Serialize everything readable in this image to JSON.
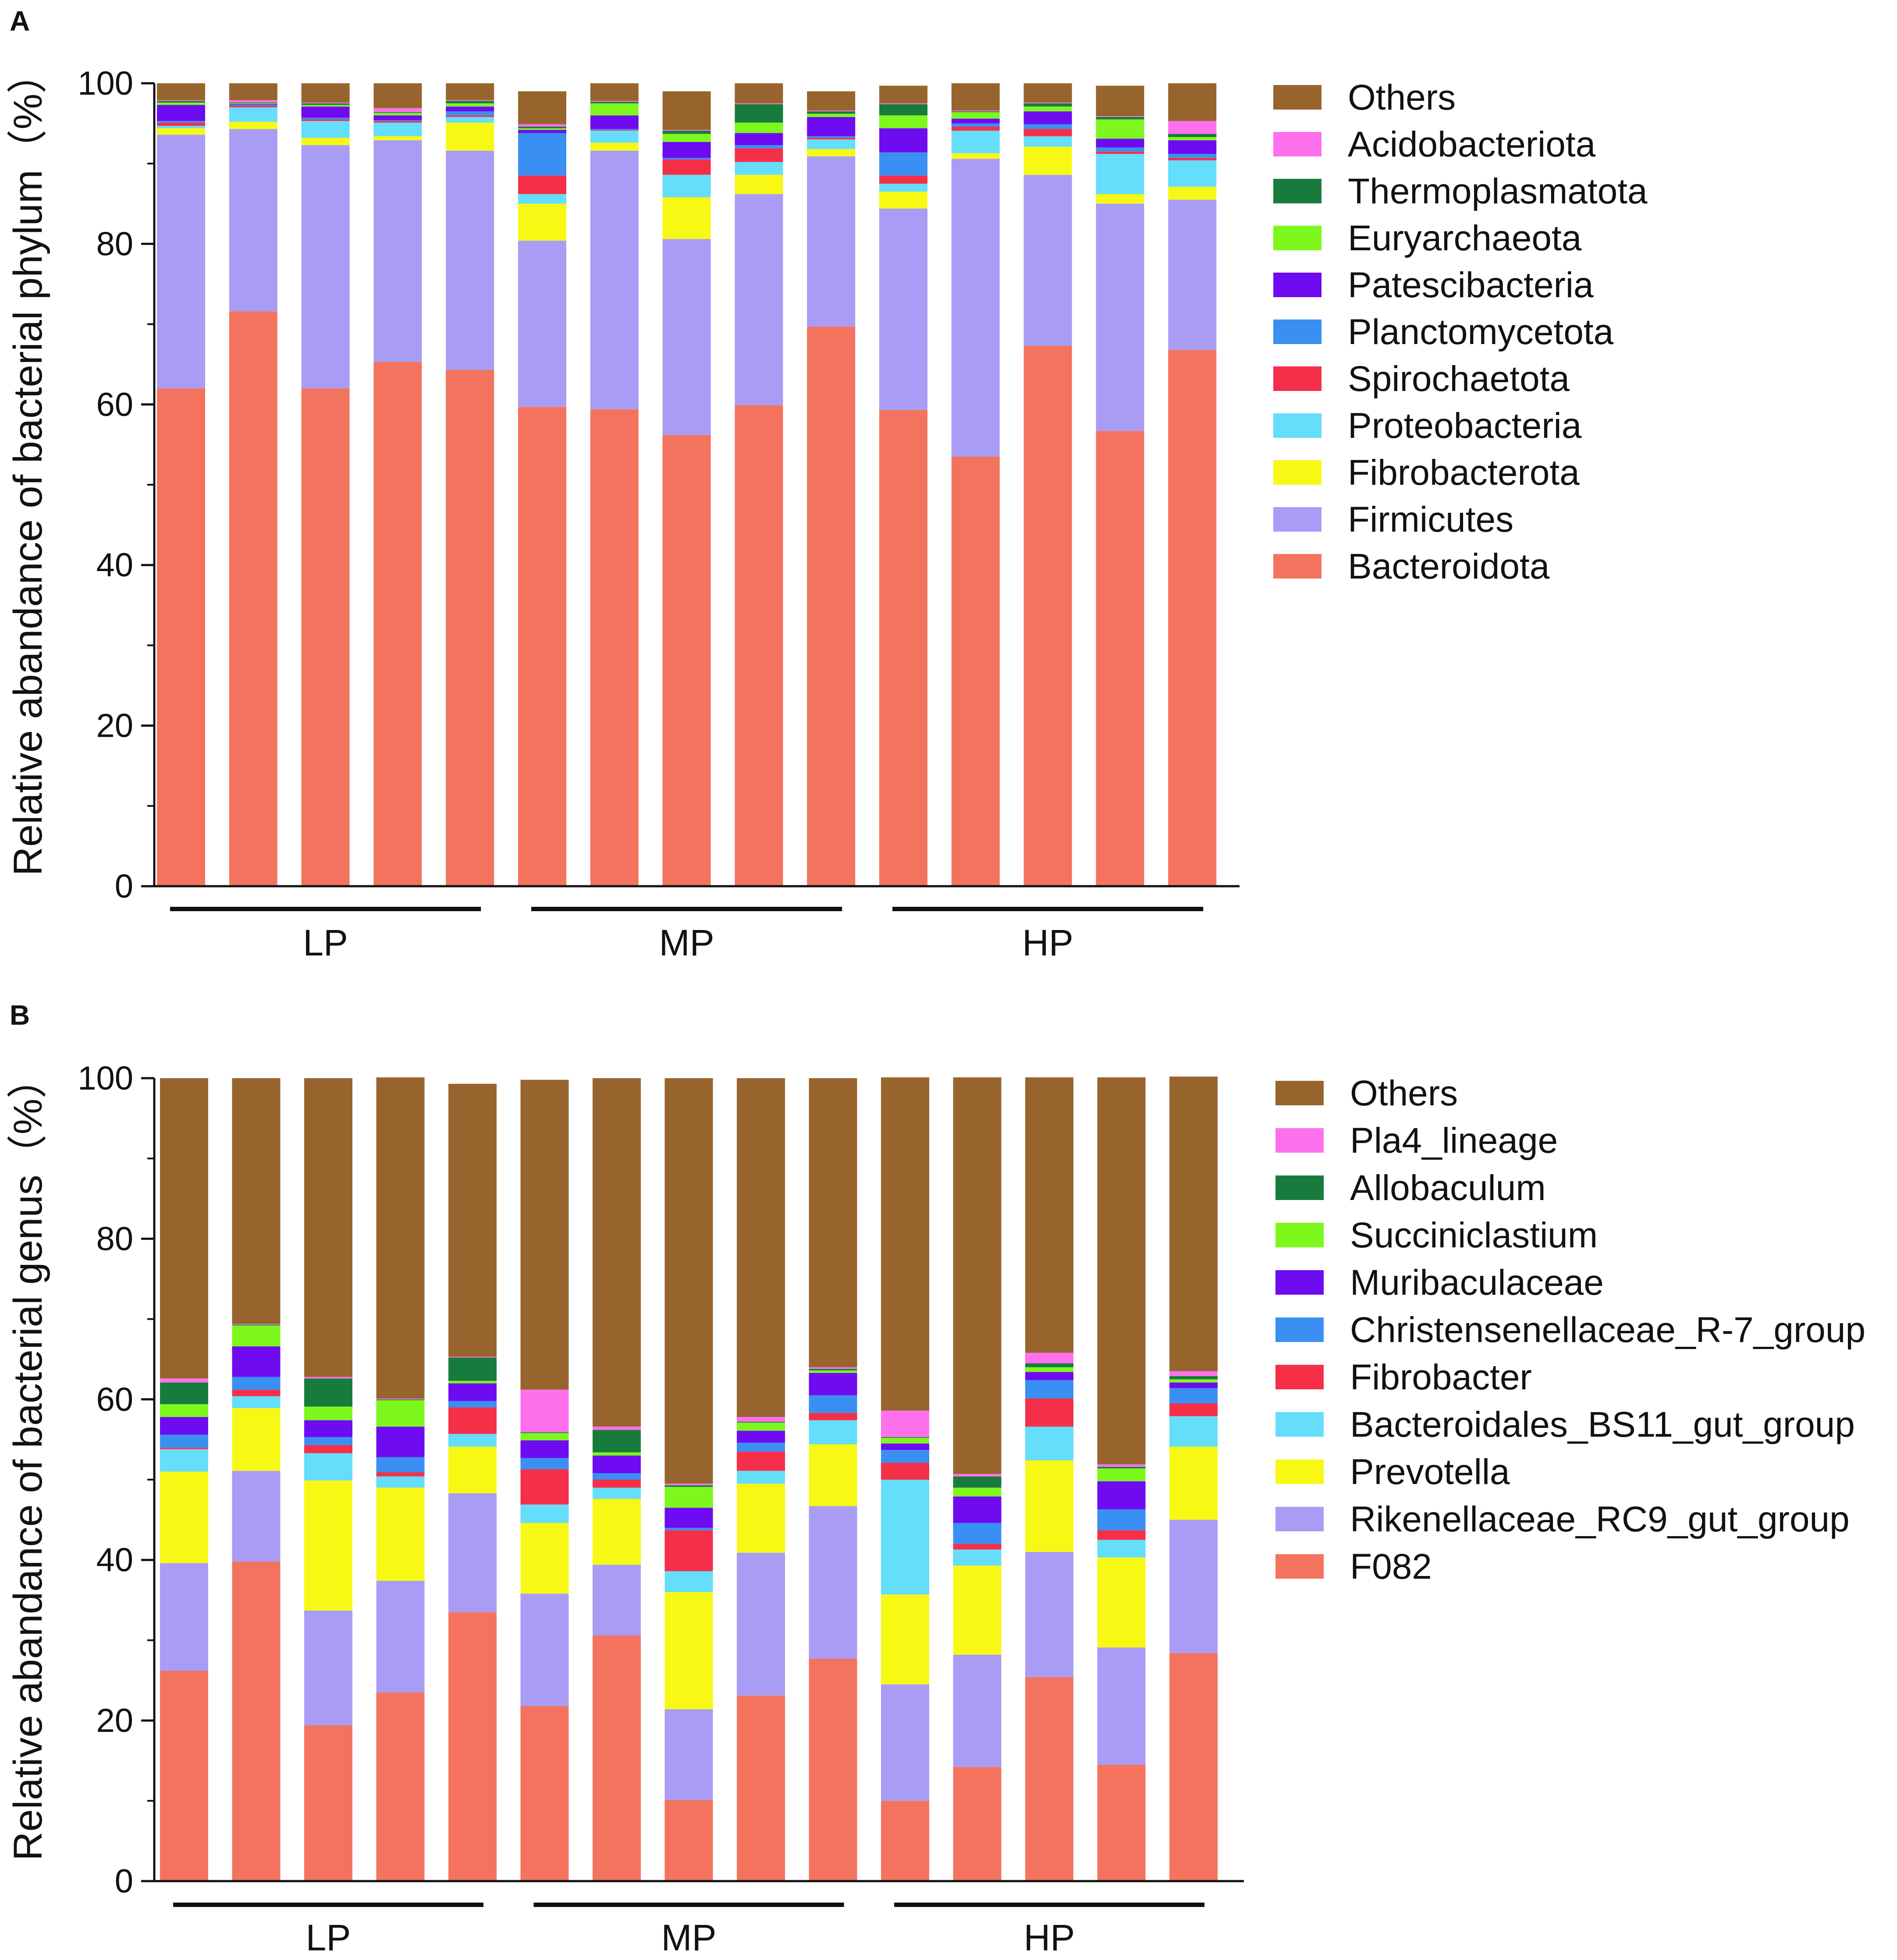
{
  "figure": {
    "panels": [
      "A",
      "B"
    ]
  },
  "chart_data": [
    {
      "type": "stacked-bar",
      "panel_label": "A",
      "title": "",
      "xlabel": "",
      "ylabel": "Relative abandance of bacterial phylum（%）",
      "ylim": [
        0,
        100
      ],
      "yticks": [
        "0",
        "20",
        "40",
        "60",
        "80",
        "100"
      ],
      "groups": [
        {
          "label": "LP",
          "samples": [
            0,
            1,
            2,
            3,
            4
          ]
        },
        {
          "label": "MP",
          "samples": [
            5,
            6,
            7,
            8,
            9
          ]
        },
        {
          "label": "HP",
          "samples": [
            10,
            11,
            12,
            13,
            14
          ]
        }
      ],
      "series": [
        {
          "name": "Bacteroidota",
          "color": "#F4735F",
          "values": [
            62.0,
            71.6,
            62.0,
            65.3,
            64.3,
            59.7,
            59.4,
            56.2,
            59.9,
            69.7,
            59.3,
            53.5,
            67.3,
            56.7,
            66.8
          ]
        },
        {
          "name": "Firmicutes",
          "color": "#A99CF4",
          "values": [
            31.6,
            22.7,
            30.3,
            27.6,
            27.3,
            20.7,
            32.2,
            24.4,
            26.3,
            21.2,
            25.1,
            37.1,
            21.3,
            28.3,
            18.7
          ]
        },
        {
          "name": "Fibrobacterota",
          "color": "#F8F815",
          "values": [
            0.8,
            0.9,
            0.9,
            0.5,
            3.5,
            4.6,
            1.0,
            5.2,
            2.4,
            0.9,
            2.1,
            0.7,
            3.5,
            1.2,
            1.6
          ]
        },
        {
          "name": "Proteobacteria",
          "color": "#64DEFA",
          "values": [
            0.3,
            1.8,
            2.1,
            1.7,
            0.7,
            1.2,
            1.5,
            2.8,
            1.6,
            1.2,
            1.0,
            2.8,
            1.3,
            5.0,
            3.3
          ]
        },
        {
          "name": "Spirochaetota",
          "color": "#F52F48",
          "values": [
            0.4,
            0.2,
            0.2,
            0.2,
            0.2,
            2.3,
            0.1,
            1.9,
            1.7,
            0.2,
            1.0,
            0.5,
            0.9,
            0.3,
            0.3
          ]
        },
        {
          "name": "Planctomycetota",
          "color": "#3A8FF3",
          "values": [
            0.2,
            0.1,
            0.2,
            0.1,
            0.5,
            5.3,
            0.1,
            0.2,
            0.4,
            0.2,
            2.9,
            0.4,
            0.6,
            0.5,
            0.5
          ]
        },
        {
          "name": "Patescibacteria",
          "color": "#6E0BF1",
          "values": [
            2.0,
            0.1,
            1.4,
            0.6,
            0.6,
            0.4,
            1.7,
            2.0,
            1.5,
            2.4,
            3.0,
            0.6,
            1.6,
            1.1,
            1.7
          ]
        },
        {
          "name": "Euryarchaeota",
          "color": "#7EF71D",
          "values": [
            0.3,
            0.1,
            0.2,
            0.3,
            0.4,
            0.2,
            1.5,
            1.0,
            1.3,
            0.4,
            1.6,
            0.8,
            0.6,
            2.4,
            0.4
          ]
        },
        {
          "name": "Thermoplasmatota",
          "color": "#187B3E",
          "values": [
            0.2,
            0.1,
            0.2,
            0.1,
            0.3,
            0.2,
            0.2,
            0.4,
            2.3,
            0.3,
            1.4,
            0.1,
            0.4,
            0.3,
            0.4
          ]
        },
        {
          "name": "Acidobacteriota",
          "color": "#FF71EC",
          "values": [
            0.1,
            0.3,
            0.1,
            0.5,
            0.1,
            0.3,
            0.1,
            0.1,
            0.1,
            0.1,
            0.1,
            0.1,
            0.1,
            0.1,
            1.6
          ]
        },
        {
          "name": "Others",
          "color": "#98642E",
          "values": [
            2.1,
            2.1,
            2.4,
            3.1,
            2.1,
            4.1,
            2.2,
            4.8,
            2.5,
            2.4,
            2.2,
            3.4,
            2.4,
            3.8,
            4.7
          ]
        }
      ]
    },
    {
      "type": "stacked-bar",
      "panel_label": "B",
      "title": "",
      "xlabel": "",
      "ylabel": "Relative abandance of bacterial genus（%）",
      "ylim": [
        0,
        100
      ],
      "yticks": [
        "0",
        "20",
        "40",
        "60",
        "80",
        "100"
      ],
      "groups": [
        {
          "label": "LP",
          "samples": [
            0,
            1,
            2,
            3,
            4
          ]
        },
        {
          "label": "MP",
          "samples": [
            5,
            6,
            7,
            8,
            9
          ]
        },
        {
          "label": "HP",
          "samples": [
            10,
            11,
            12,
            13,
            14
          ]
        }
      ],
      "series": [
        {
          "name": "F082",
          "color": "#F4735F",
          "values": [
            26.2,
            39.8,
            19.4,
            23.5,
            33.5,
            21.8,
            30.6,
            10.1,
            23.1,
            27.7,
            10.0,
            14.2,
            25.4,
            14.5,
            28.4
          ]
        },
        {
          "name": "Rikenellaceae_RC9_gut_group",
          "color": "#A99CF4",
          "values": [
            13.4,
            11.3,
            14.3,
            13.9,
            14.8,
            14.0,
            8.8,
            11.3,
            17.8,
            19.0,
            14.5,
            14.0,
            15.6,
            14.6,
            16.6
          ]
        },
        {
          "name": "Prevotella",
          "color": "#F8F815",
          "values": [
            11.4,
            7.8,
            16.2,
            11.6,
            5.8,
            8.8,
            8.2,
            14.6,
            8.6,
            7.7,
            11.2,
            11.1,
            11.4,
            11.2,
            9.1
          ]
        },
        {
          "name": "Bacteroidales_BS11_gut_group",
          "color": "#64DEFA",
          "values": [
            2.8,
            1.5,
            3.4,
            1.4,
            1.6,
            2.3,
            1.4,
            2.6,
            1.6,
            3.0,
            14.3,
            2.0,
            4.2,
            2.2,
            3.8
          ]
        },
        {
          "name": "Fibrobacter",
          "color": "#F52F48",
          "values": [
            0.2,
            0.8,
            1.0,
            0.5,
            3.3,
            4.4,
            1.0,
            5.1,
            2.4,
            0.9,
            2.1,
            0.7,
            3.5,
            1.2,
            1.6
          ]
        },
        {
          "name": "Christensenellaceae_R-7_group",
          "color": "#3A8FF3",
          "values": [
            1.6,
            1.6,
            1.0,
            1.9,
            0.8,
            1.4,
            0.8,
            0.3,
            1.1,
            2.2,
            1.6,
            2.6,
            2.3,
            2.6,
            1.9
          ]
        },
        {
          "name": "Muribaculaceae",
          "color": "#6E0BF1",
          "values": [
            2.2,
            3.8,
            2.1,
            3.8,
            2.2,
            2.2,
            2.2,
            2.5,
            1.5,
            2.8,
            0.8,
            3.3,
            1.0,
            3.5,
            0.7
          ]
        },
        {
          "name": "Succiniclastium",
          "color": "#7EF71D",
          "values": [
            1.6,
            2.6,
            1.7,
            3.3,
            0.3,
            0.9,
            0.4,
            2.6,
            1.0,
            0.3,
            0.7,
            1.1,
            0.6,
            1.6,
            0.4
          ]
        },
        {
          "name": "Allobaculum",
          "color": "#187B3E",
          "values": [
            2.7,
            0.1,
            3.5,
            0.1,
            2.9,
            0.1,
            2.8,
            0.2,
            0.1,
            0.2,
            0.1,
            1.4,
            0.5,
            0.2,
            0.4
          ]
        },
        {
          "name": "Pla4_lineage",
          "color": "#FF71EC",
          "values": [
            0.5,
            0.1,
            0.2,
            0.1,
            0.1,
            5.3,
            0.4,
            0.2,
            0.6,
            0.2,
            3.3,
            0.3,
            1.3,
            0.3,
            0.6
          ]
        },
        {
          "name": "Others",
          "color": "#98642E",
          "values": [
            37.4,
            30.6,
            37.2,
            40.0,
            34.0,
            38.6,
            43.4,
            50.5,
            42.2,
            36.0,
            41.5,
            49.4,
            34.3,
            48.2,
            36.7
          ]
        }
      ]
    }
  ]
}
